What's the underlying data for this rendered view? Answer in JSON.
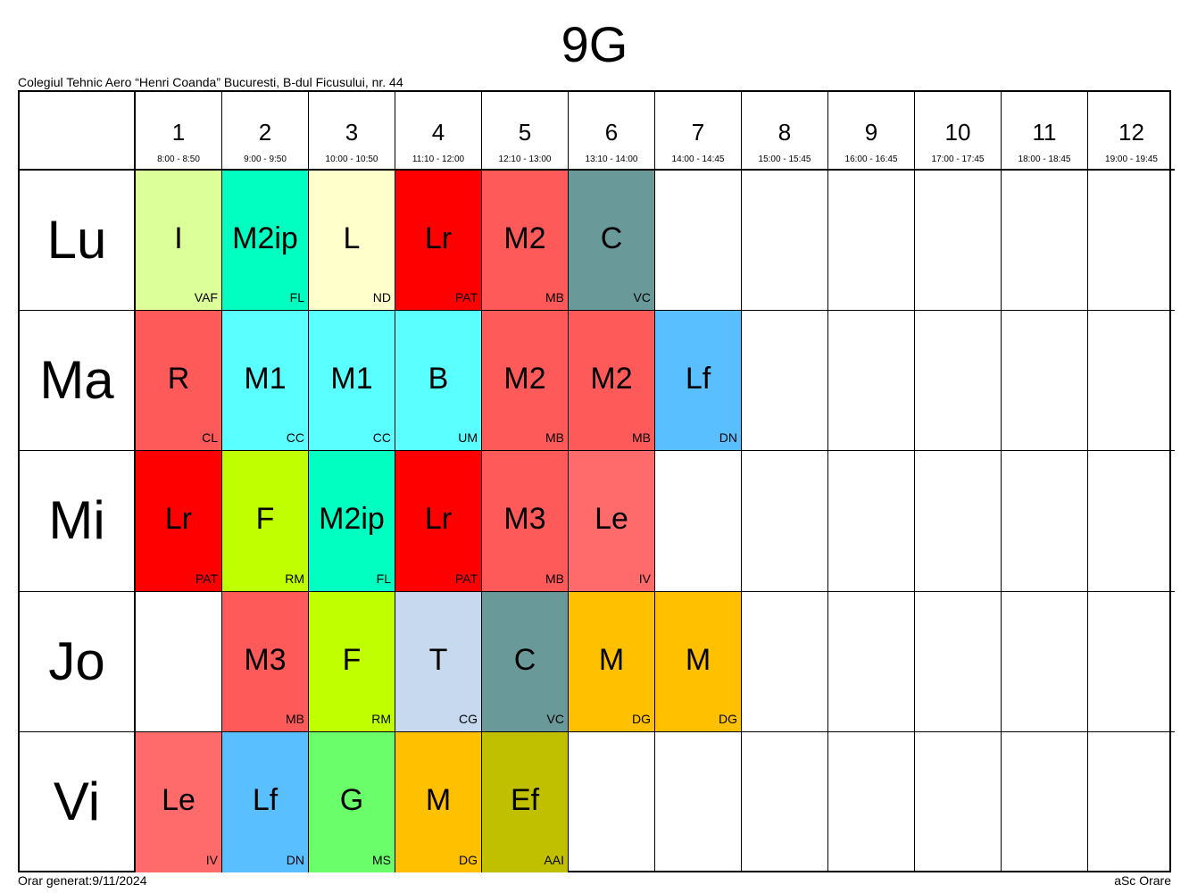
{
  "title": "9G",
  "school": "Colegiul Tehnic Aero “Henri Coanda” Bucuresti, B-dul Ficusului, nr. 44",
  "footer_left": "Orar generat:9/11/2024",
  "footer_right": "aSc Orare",
  "periods": [
    {
      "num": "1",
      "time": "8:00 - 8:50"
    },
    {
      "num": "2",
      "time": "9:00 - 9:50"
    },
    {
      "num": "3",
      "time": "10:00 - 10:50"
    },
    {
      "num": "4",
      "time": "11:10 - 12:00"
    },
    {
      "num": "5",
      "time": "12:10 - 13:00"
    },
    {
      "num": "6",
      "time": "13:10 - 14:00"
    },
    {
      "num": "7",
      "time": "14:00 - 14:45"
    },
    {
      "num": "8",
      "time": "15:00 - 15:45"
    },
    {
      "num": "9",
      "time": "16:00 - 16:45"
    },
    {
      "num": "10",
      "time": "17:00 - 17:45"
    },
    {
      "num": "11",
      "time": "18:00 - 18:45"
    },
    {
      "num": "12",
      "time": "19:00 - 19:45"
    }
  ],
  "days": [
    {
      "name": "Lu",
      "lessons": [
        {
          "subject": "I",
          "teacher": "VAF",
          "color": "#dcff99"
        },
        {
          "subject": "M2ip",
          "teacher": "FL",
          "color": "#00ffc0"
        },
        {
          "subject": "L",
          "teacher": "ND",
          "color": "#ffffcc"
        },
        {
          "subject": "Lr",
          "teacher": "PAT",
          "color": "#ff0000"
        },
        {
          "subject": "M2",
          "teacher": "MB",
          "color": "#ff5a5a"
        },
        {
          "subject": "C",
          "teacher": "VC",
          "color": "#6a9999"
        },
        null,
        null,
        null,
        null,
        null,
        null
      ]
    },
    {
      "name": "Ma",
      "lessons": [
        {
          "subject": "R",
          "teacher": "CL",
          "color": "#ff5a5a"
        },
        {
          "subject": "M1",
          "teacher": "CC",
          "color": "#5affff"
        },
        {
          "subject": "M1",
          "teacher": "CC",
          "color": "#5affff"
        },
        {
          "subject": "B",
          "teacher": "UM",
          "color": "#5affff"
        },
        {
          "subject": "M2",
          "teacher": "MB",
          "color": "#ff5a5a"
        },
        {
          "subject": "M2",
          "teacher": "MB",
          "color": "#ff5a5a"
        },
        {
          "subject": "Lf",
          "teacher": "DN",
          "color": "#5abfff"
        },
        null,
        null,
        null,
        null,
        null
      ]
    },
    {
      "name": "Mi",
      "lessons": [
        {
          "subject": "Lr",
          "teacher": "PAT",
          "color": "#ff0000"
        },
        {
          "subject": "F",
          "teacher": "RM",
          "color": "#bfff00"
        },
        {
          "subject": "M2ip",
          "teacher": "FL",
          "color": "#00ffc0"
        },
        {
          "subject": "Lr",
          "teacher": "PAT",
          "color": "#ff0000"
        },
        {
          "subject": "M3",
          "teacher": "MB",
          "color": "#ff5a5a"
        },
        {
          "subject": "Le",
          "teacher": "IV",
          "color": "#ff6a6a"
        },
        null,
        null,
        null,
        null,
        null,
        null
      ]
    },
    {
      "name": "Jo",
      "lessons": [
        null,
        {
          "subject": "M3",
          "teacher": "MB",
          "color": "#ff5a5a"
        },
        {
          "subject": "F",
          "teacher": "RM",
          "color": "#bfff00"
        },
        {
          "subject": "T",
          "teacher": "CG",
          "color": "#c6d9ee"
        },
        {
          "subject": "C",
          "teacher": "VC",
          "color": "#6a9999"
        },
        {
          "subject": "M",
          "teacher": "DG",
          "color": "#ffc000"
        },
        {
          "subject": "M",
          "teacher": "DG",
          "color": "#ffc000"
        },
        null,
        null,
        null,
        null,
        null
      ]
    },
    {
      "name": "Vi",
      "lessons": [
        {
          "subject": "Le",
          "teacher": "IV",
          "color": "#ff6a6a"
        },
        {
          "subject": "Lf",
          "teacher": "DN",
          "color": "#5abfff"
        },
        {
          "subject": "G",
          "teacher": "MS",
          "color": "#6aff6a"
        },
        {
          "subject": "M",
          "teacher": "DG",
          "color": "#ffc000"
        },
        {
          "subject": "Ef",
          "teacher": "AAI",
          "color": "#c0c000"
        },
        null,
        null,
        null,
        null,
        null,
        null,
        null
      ]
    }
  ]
}
